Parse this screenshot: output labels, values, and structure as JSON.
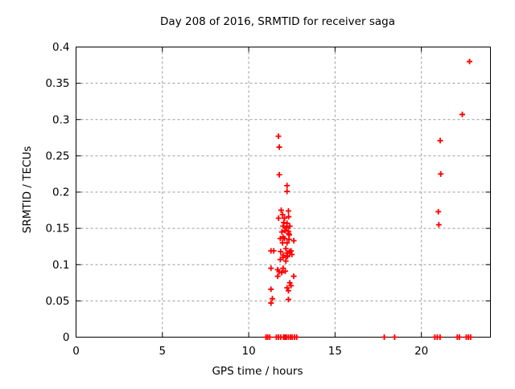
{
  "colors": {
    "marker": "#ff0000",
    "grid": "#9a9a9a",
    "axis": "#000000",
    "background": "#ffffff",
    "text": "#000000"
  },
  "chart_data": {
    "type": "scatter",
    "title": "Day 208 of 2016, SRMTID for receiver saga",
    "xlabel": "GPS time / hours",
    "ylabel": "SRMTID / TECUs",
    "xlim": [
      0,
      24
    ],
    "ylim": [
      0,
      0.4
    ],
    "xticks": [
      0,
      5,
      10,
      15,
      20
    ],
    "xtick_labels": [
      "0",
      "5",
      "10",
      "15",
      "20"
    ],
    "yticks": [
      0,
      0.05,
      0.1,
      0.15,
      0.2,
      0.25,
      0.3,
      0.35,
      0.4
    ],
    "ytick_labels": [
      "0",
      "0.05",
      "0.1",
      "0.15",
      "0.2",
      "0.25",
      "0.3",
      "0.35",
      "0.4"
    ],
    "grid": true,
    "legend": "none",
    "marker_style": "plus",
    "series": [
      {
        "name": "SRMTID",
        "points": [
          [
            11.72,
            0.277
          ],
          [
            11.77,
            0.262
          ],
          [
            11.77,
            0.224
          ],
          [
            12.22,
            0.209
          ],
          [
            12.22,
            0.201
          ],
          [
            11.88,
            0.175
          ],
          [
            12.3,
            0.174
          ],
          [
            11.96,
            0.169
          ],
          [
            11.73,
            0.164
          ],
          [
            12.07,
            0.164
          ],
          [
            12.31,
            0.166
          ],
          [
            12.03,
            0.158
          ],
          [
            12.22,
            0.157
          ],
          [
            11.99,
            0.153
          ],
          [
            12.19,
            0.151
          ],
          [
            12.38,
            0.153
          ],
          [
            12.1,
            0.147
          ],
          [
            12.3,
            0.146
          ],
          [
            11.92,
            0.145
          ],
          [
            12.31,
            0.143
          ],
          [
            12.35,
            0.141
          ],
          [
            11.99,
            0.138
          ],
          [
            11.83,
            0.136
          ],
          [
            12.07,
            0.136
          ],
          [
            12.33,
            0.135
          ],
          [
            12.61,
            0.133
          ],
          [
            11.96,
            0.13
          ],
          [
            12.22,
            0.13
          ],
          [
            11.29,
            0.119
          ],
          [
            11.45,
            0.119
          ],
          [
            11.85,
            0.118
          ],
          [
            12.15,
            0.122
          ],
          [
            12.22,
            0.116
          ],
          [
            12.38,
            0.118
          ],
          [
            12.45,
            0.119
          ],
          [
            11.99,
            0.113
          ],
          [
            12.25,
            0.112
          ],
          [
            12.5,
            0.114
          ],
          [
            11.99,
            0.11
          ],
          [
            12.22,
            0.111
          ],
          [
            11.83,
            0.107
          ],
          [
            12.15,
            0.105
          ],
          [
            11.29,
            0.095
          ],
          [
            11.68,
            0.093
          ],
          [
            11.99,
            0.095
          ],
          [
            11.76,
            0.09
          ],
          [
            11.91,
            0.089
          ],
          [
            12.12,
            0.091
          ],
          [
            11.68,
            0.084
          ],
          [
            12.61,
            0.084
          ],
          [
            12.38,
            0.075
          ],
          [
            12.45,
            0.071
          ],
          [
            12.22,
            0.068
          ],
          [
            12.3,
            0.064
          ],
          [
            11.29,
            0.066
          ],
          [
            11.37,
            0.053
          ],
          [
            12.3,
            0.052
          ],
          [
            11.29,
            0.047
          ],
          [
            21.09,
            0.271
          ],
          [
            21.12,
            0.225
          ],
          [
            20.98,
            0.173
          ],
          [
            21.01,
            0.155
          ],
          [
            22.37,
            0.307
          ],
          [
            22.79,
            0.38
          ],
          [
            11.0,
            0
          ],
          [
            11.1,
            0
          ],
          [
            11.22,
            0
          ],
          [
            11.6,
            0
          ],
          [
            11.72,
            0
          ],
          [
            11.85,
            0
          ],
          [
            12.02,
            0
          ],
          [
            12.1,
            0
          ],
          [
            12.18,
            0
          ],
          [
            12.3,
            0
          ],
          [
            12.42,
            0
          ],
          [
            12.52,
            0
          ],
          [
            12.65,
            0
          ],
          [
            12.78,
            0
          ],
          [
            17.85,
            0
          ],
          [
            18.45,
            0
          ],
          [
            20.78,
            0
          ],
          [
            20.92,
            0
          ],
          [
            21.08,
            0
          ],
          [
            22.08,
            0
          ],
          [
            22.2,
            0
          ],
          [
            22.6,
            0
          ],
          [
            22.72,
            0
          ],
          [
            22.85,
            0
          ]
        ]
      }
    ]
  }
}
